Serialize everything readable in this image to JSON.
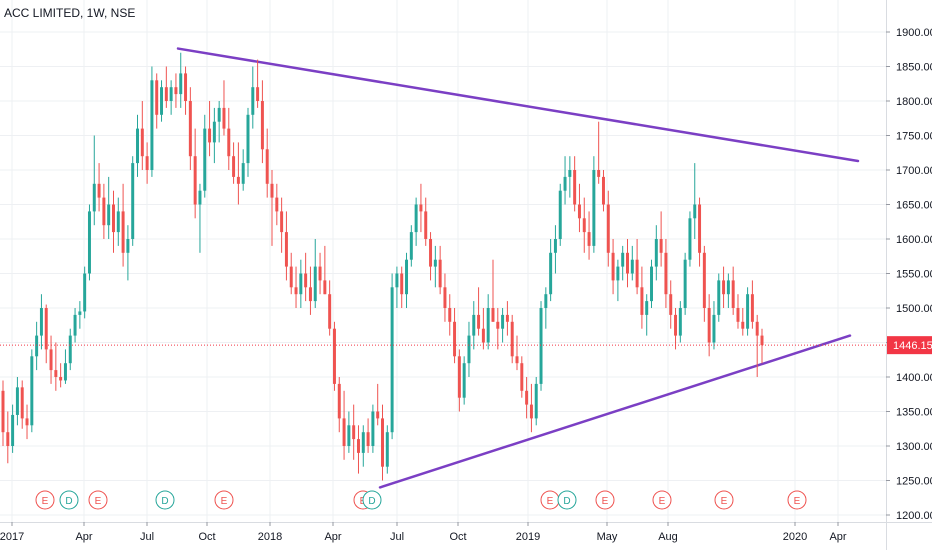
{
  "chart_data": {
    "type": "candlestick",
    "title": "ACC LIMITED, 1W, NSE",
    "y_axis": {
      "ticks": [
        1200,
        1250,
        1300,
        1350,
        1400,
        1450,
        1500,
        1550,
        1600,
        1650,
        1700,
        1750,
        1800,
        1850,
        1900
      ],
      "range": [
        1195,
        1925
      ],
      "position": "right"
    },
    "x_axis": {
      "ticks": [
        "2017",
        "Apr",
        "Jul",
        "Oct",
        "2018",
        "Apr",
        "Jul",
        "Oct",
        "2019",
        "May",
        "Aug",
        "2020",
        "Apr"
      ]
    },
    "last_price": {
      "value": 1446.15,
      "label": "1446.15",
      "color": "#f23645"
    },
    "candles": [
      {
        "o": 1380,
        "h": 1395,
        "l": 1300,
        "c": 1320
      },
      {
        "o": 1320,
        "h": 1350,
        "l": 1275,
        "c": 1300
      },
      {
        "o": 1300,
        "h": 1360,
        "l": 1290,
        "c": 1345
      },
      {
        "o": 1345,
        "h": 1400,
        "l": 1330,
        "c": 1385
      },
      {
        "o": 1385,
        "h": 1395,
        "l": 1325,
        "c": 1340
      },
      {
        "o": 1340,
        "h": 1360,
        "l": 1310,
        "c": 1330
      },
      {
        "o": 1330,
        "h": 1440,
        "l": 1320,
        "c": 1430
      },
      {
        "o": 1430,
        "h": 1480,
        "l": 1410,
        "c": 1460
      },
      {
        "o": 1460,
        "h": 1520,
        "l": 1440,
        "c": 1500
      },
      {
        "o": 1500,
        "h": 1505,
        "l": 1420,
        "c": 1440
      },
      {
        "o": 1440,
        "h": 1460,
        "l": 1390,
        "c": 1410
      },
      {
        "o": 1410,
        "h": 1450,
        "l": 1380,
        "c": 1400
      },
      {
        "o": 1400,
        "h": 1420,
        "l": 1385,
        "c": 1395
      },
      {
        "o": 1395,
        "h": 1440,
        "l": 1390,
        "c": 1420
      },
      {
        "o": 1420,
        "h": 1470,
        "l": 1410,
        "c": 1460
      },
      {
        "o": 1460,
        "h": 1500,
        "l": 1450,
        "c": 1490
      },
      {
        "o": 1490,
        "h": 1510,
        "l": 1470,
        "c": 1495
      },
      {
        "o": 1495,
        "h": 1560,
        "l": 1485,
        "c": 1550
      },
      {
        "o": 1550,
        "h": 1650,
        "l": 1540,
        "c": 1640
      },
      {
        "o": 1640,
        "h": 1750,
        "l": 1620,
        "c": 1680
      },
      {
        "o": 1680,
        "h": 1710,
        "l": 1640,
        "c": 1660
      },
      {
        "o": 1660,
        "h": 1680,
        "l": 1600,
        "c": 1620
      },
      {
        "o": 1620,
        "h": 1690,
        "l": 1600,
        "c": 1650
      },
      {
        "o": 1650,
        "h": 1670,
        "l": 1580,
        "c": 1610
      },
      {
        "o": 1610,
        "h": 1660,
        "l": 1590,
        "c": 1640
      },
      {
        "o": 1640,
        "h": 1680,
        "l": 1560,
        "c": 1580
      },
      {
        "o": 1580,
        "h": 1620,
        "l": 1540,
        "c": 1600
      },
      {
        "o": 1600,
        "h": 1720,
        "l": 1590,
        "c": 1710
      },
      {
        "o": 1710,
        "h": 1780,
        "l": 1690,
        "c": 1760
      },
      {
        "o": 1760,
        "h": 1800,
        "l": 1700,
        "c": 1720
      },
      {
        "o": 1720,
        "h": 1740,
        "l": 1680,
        "c": 1700
      },
      {
        "o": 1700,
        "h": 1850,
        "l": 1690,
        "c": 1830
      },
      {
        "o": 1830,
        "h": 1840,
        "l": 1760,
        "c": 1780
      },
      {
        "o": 1780,
        "h": 1830,
        "l": 1770,
        "c": 1820
      },
      {
        "o": 1820,
        "h": 1850,
        "l": 1790,
        "c": 1800
      },
      {
        "o": 1800,
        "h": 1830,
        "l": 1780,
        "c": 1820
      },
      {
        "o": 1820,
        "h": 1840,
        "l": 1790,
        "c": 1810
      },
      {
        "o": 1810,
        "h": 1870,
        "l": 1790,
        "c": 1840
      },
      {
        "o": 1840,
        "h": 1850,
        "l": 1780,
        "c": 1800
      },
      {
        "o": 1800,
        "h": 1820,
        "l": 1700,
        "c": 1720
      },
      {
        "o": 1720,
        "h": 1760,
        "l": 1630,
        "c": 1650
      },
      {
        "o": 1650,
        "h": 1680,
        "l": 1580,
        "c": 1670
      },
      {
        "o": 1670,
        "h": 1780,
        "l": 1660,
        "c": 1760
      },
      {
        "o": 1760,
        "h": 1800,
        "l": 1720,
        "c": 1740
      },
      {
        "o": 1740,
        "h": 1790,
        "l": 1710,
        "c": 1770
      },
      {
        "o": 1770,
        "h": 1800,
        "l": 1740,
        "c": 1790
      },
      {
        "o": 1790,
        "h": 1830,
        "l": 1750,
        "c": 1760
      },
      {
        "o": 1760,
        "h": 1790,
        "l": 1700,
        "c": 1720
      },
      {
        "o": 1720,
        "h": 1740,
        "l": 1680,
        "c": 1690
      },
      {
        "o": 1690,
        "h": 1740,
        "l": 1650,
        "c": 1680
      },
      {
        "o": 1680,
        "h": 1730,
        "l": 1670,
        "c": 1710
      },
      {
        "o": 1710,
        "h": 1790,
        "l": 1690,
        "c": 1780
      },
      {
        "o": 1780,
        "h": 1850,
        "l": 1760,
        "c": 1820
      },
      {
        "o": 1820,
        "h": 1860,
        "l": 1790,
        "c": 1800
      },
      {
        "o": 1800,
        "h": 1830,
        "l": 1710,
        "c": 1730
      },
      {
        "o": 1730,
        "h": 1760,
        "l": 1660,
        "c": 1680
      },
      {
        "o": 1680,
        "h": 1700,
        "l": 1590,
        "c": 1660
      },
      {
        "o": 1660,
        "h": 1680,
        "l": 1620,
        "c": 1640
      },
      {
        "o": 1640,
        "h": 1660,
        "l": 1580,
        "c": 1610
      },
      {
        "o": 1610,
        "h": 1640,
        "l": 1540,
        "c": 1560
      },
      {
        "o": 1560,
        "h": 1580,
        "l": 1520,
        "c": 1530
      },
      {
        "o": 1530,
        "h": 1560,
        "l": 1500,
        "c": 1520
      },
      {
        "o": 1520,
        "h": 1570,
        "l": 1500,
        "c": 1550
      },
      {
        "o": 1550,
        "h": 1580,
        "l": 1510,
        "c": 1530
      },
      {
        "o": 1530,
        "h": 1560,
        "l": 1490,
        "c": 1510
      },
      {
        "o": 1510,
        "h": 1600,
        "l": 1500,
        "c": 1560
      },
      {
        "o": 1560,
        "h": 1580,
        "l": 1520,
        "c": 1540
      },
      {
        "o": 1540,
        "h": 1590,
        "l": 1520,
        "c": 1520
      },
      {
        "o": 1520,
        "h": 1540,
        "l": 1460,
        "c": 1470
      },
      {
        "o": 1470,
        "h": 1480,
        "l": 1380,
        "c": 1390
      },
      {
        "o": 1390,
        "h": 1400,
        "l": 1320,
        "c": 1340
      },
      {
        "o": 1340,
        "h": 1380,
        "l": 1280,
        "c": 1300
      },
      {
        "o": 1300,
        "h": 1350,
        "l": 1290,
        "c": 1330
      },
      {
        "o": 1330,
        "h": 1360,
        "l": 1280,
        "c": 1310
      },
      {
        "o": 1310,
        "h": 1330,
        "l": 1260,
        "c": 1290
      },
      {
        "o": 1290,
        "h": 1330,
        "l": 1270,
        "c": 1320
      },
      {
        "o": 1320,
        "h": 1340,
        "l": 1290,
        "c": 1300
      },
      {
        "o": 1300,
        "h": 1360,
        "l": 1290,
        "c": 1350
      },
      {
        "o": 1350,
        "h": 1390,
        "l": 1330,
        "c": 1340
      },
      {
        "o": 1340,
        "h": 1360,
        "l": 1250,
        "c": 1270
      },
      {
        "o": 1270,
        "h": 1330,
        "l": 1260,
        "c": 1320
      },
      {
        "o": 1320,
        "h": 1550,
        "l": 1310,
        "c": 1530
      },
      {
        "o": 1530,
        "h": 1560,
        "l": 1500,
        "c": 1550
      },
      {
        "o": 1550,
        "h": 1560,
        "l": 1500,
        "c": 1520
      },
      {
        "o": 1520,
        "h": 1580,
        "l": 1500,
        "c": 1570
      },
      {
        "o": 1570,
        "h": 1620,
        "l": 1560,
        "c": 1610
      },
      {
        "o": 1610,
        "h": 1660,
        "l": 1590,
        "c": 1650
      },
      {
        "o": 1650,
        "h": 1680,
        "l": 1610,
        "c": 1640
      },
      {
        "o": 1640,
        "h": 1660,
        "l": 1590,
        "c": 1600
      },
      {
        "o": 1600,
        "h": 1610,
        "l": 1540,
        "c": 1560
      },
      {
        "o": 1560,
        "h": 1590,
        "l": 1530,
        "c": 1570
      },
      {
        "o": 1570,
        "h": 1590,
        "l": 1520,
        "c": 1530
      },
      {
        "o": 1530,
        "h": 1550,
        "l": 1480,
        "c": 1500
      },
      {
        "o": 1500,
        "h": 1520,
        "l": 1460,
        "c": 1480
      },
      {
        "o": 1480,
        "h": 1500,
        "l": 1420,
        "c": 1430
      },
      {
        "o": 1430,
        "h": 1440,
        "l": 1350,
        "c": 1370
      },
      {
        "o": 1370,
        "h": 1430,
        "l": 1360,
        "c": 1420
      },
      {
        "o": 1420,
        "h": 1480,
        "l": 1400,
        "c": 1460
      },
      {
        "o": 1460,
        "h": 1510,
        "l": 1440,
        "c": 1490
      },
      {
        "o": 1490,
        "h": 1530,
        "l": 1460,
        "c": 1470
      },
      {
        "o": 1470,
        "h": 1500,
        "l": 1440,
        "c": 1450
      },
      {
        "o": 1450,
        "h": 1520,
        "l": 1440,
        "c": 1500
      },
      {
        "o": 1500,
        "h": 1570,
        "l": 1480,
        "c": 1480
      },
      {
        "o": 1480,
        "h": 1500,
        "l": 1440,
        "c": 1470
      },
      {
        "o": 1470,
        "h": 1500,
        "l": 1450,
        "c": 1490
      },
      {
        "o": 1490,
        "h": 1510,
        "l": 1460,
        "c": 1480
      },
      {
        "o": 1480,
        "h": 1490,
        "l": 1420,
        "c": 1430
      },
      {
        "o": 1430,
        "h": 1460,
        "l": 1410,
        "c": 1420
      },
      {
        "o": 1420,
        "h": 1430,
        "l": 1370,
        "c": 1380
      },
      {
        "o": 1380,
        "h": 1400,
        "l": 1340,
        "c": 1360
      },
      {
        "o": 1360,
        "h": 1390,
        "l": 1320,
        "c": 1340
      },
      {
        "o": 1340,
        "h": 1400,
        "l": 1330,
        "c": 1390
      },
      {
        "o": 1390,
        "h": 1510,
        "l": 1380,
        "c": 1500
      },
      {
        "o": 1500,
        "h": 1530,
        "l": 1470,
        "c": 1520
      },
      {
        "o": 1520,
        "h": 1600,
        "l": 1510,
        "c": 1580
      },
      {
        "o": 1580,
        "h": 1620,
        "l": 1550,
        "c": 1600
      },
      {
        "o": 1600,
        "h": 1680,
        "l": 1590,
        "c": 1670
      },
      {
        "o": 1670,
        "h": 1720,
        "l": 1650,
        "c": 1690
      },
      {
        "o": 1690,
        "h": 1720,
        "l": 1660,
        "c": 1700
      },
      {
        "o": 1700,
        "h": 1720,
        "l": 1640,
        "c": 1650
      },
      {
        "o": 1650,
        "h": 1680,
        "l": 1610,
        "c": 1630
      },
      {
        "o": 1630,
        "h": 1660,
        "l": 1580,
        "c": 1610
      },
      {
        "o": 1610,
        "h": 1640,
        "l": 1570,
        "c": 1590
      },
      {
        "o": 1590,
        "h": 1720,
        "l": 1580,
        "c": 1700
      },
      {
        "o": 1700,
        "h": 1770,
        "l": 1680,
        "c": 1690
      },
      {
        "o": 1690,
        "h": 1700,
        "l": 1640,
        "c": 1650
      },
      {
        "o": 1650,
        "h": 1670,
        "l": 1560,
        "c": 1580
      },
      {
        "o": 1580,
        "h": 1600,
        "l": 1520,
        "c": 1540
      },
      {
        "o": 1540,
        "h": 1570,
        "l": 1510,
        "c": 1560
      },
      {
        "o": 1560,
        "h": 1590,
        "l": 1540,
        "c": 1580
      },
      {
        "o": 1580,
        "h": 1600,
        "l": 1530,
        "c": 1550
      },
      {
        "o": 1550,
        "h": 1590,
        "l": 1540,
        "c": 1570
      },
      {
        "o": 1570,
        "h": 1600,
        "l": 1520,
        "c": 1530
      },
      {
        "o": 1530,
        "h": 1560,
        "l": 1470,
        "c": 1490
      },
      {
        "o": 1490,
        "h": 1520,
        "l": 1460,
        "c": 1510
      },
      {
        "o": 1510,
        "h": 1570,
        "l": 1500,
        "c": 1560
      },
      {
        "o": 1560,
        "h": 1620,
        "l": 1540,
        "c": 1600
      },
      {
        "o": 1600,
        "h": 1640,
        "l": 1560,
        "c": 1580
      },
      {
        "o": 1580,
        "h": 1600,
        "l": 1500,
        "c": 1520
      },
      {
        "o": 1520,
        "h": 1540,
        "l": 1470,
        "c": 1490
      },
      {
        "o": 1490,
        "h": 1500,
        "l": 1440,
        "c": 1460
      },
      {
        "o": 1460,
        "h": 1510,
        "l": 1450,
        "c": 1500
      },
      {
        "o": 1500,
        "h": 1580,
        "l": 1490,
        "c": 1570
      },
      {
        "o": 1570,
        "h": 1640,
        "l": 1560,
        "c": 1630
      },
      {
        "o": 1630,
        "h": 1710,
        "l": 1600,
        "c": 1650
      },
      {
        "o": 1650,
        "h": 1660,
        "l": 1560,
        "c": 1580
      },
      {
        "o": 1580,
        "h": 1590,
        "l": 1480,
        "c": 1500
      },
      {
        "o": 1500,
        "h": 1520,
        "l": 1430,
        "c": 1450
      },
      {
        "o": 1450,
        "h": 1510,
        "l": 1440,
        "c": 1490
      },
      {
        "o": 1490,
        "h": 1550,
        "l": 1480,
        "c": 1540
      },
      {
        "o": 1540,
        "h": 1560,
        "l": 1500,
        "c": 1520
      },
      {
        "o": 1520,
        "h": 1550,
        "l": 1500,
        "c": 1540
      },
      {
        "o": 1540,
        "h": 1560,
        "l": 1490,
        "c": 1500
      },
      {
        "o": 1500,
        "h": 1520,
        "l": 1470,
        "c": 1480
      },
      {
        "o": 1480,
        "h": 1500,
        "l": 1460,
        "c": 1470
      },
      {
        "o": 1470,
        "h": 1530,
        "l": 1460,
        "c": 1520
      },
      {
        "o": 1520,
        "h": 1540,
        "l": 1470,
        "c": 1480
      },
      {
        "o": 1480,
        "h": 1490,
        "l": 1400,
        "c": 1460
      },
      {
        "o": 1460,
        "h": 1470,
        "l": 1420,
        "c": 1446.15
      }
    ],
    "events": [
      {
        "letter": "E",
        "kind": "earnings",
        "label": ""
      },
      {
        "letter": "D",
        "kind": "dividend",
        "label": ""
      },
      {
        "letter": "E",
        "kind": "earnings",
        "label": ""
      },
      {
        "letter": "D",
        "kind": "dividend",
        "label": ""
      },
      {
        "letter": "E",
        "kind": "earnings",
        "label": ""
      },
      {
        "letter": "E",
        "kind": "earnings",
        "label": ""
      },
      {
        "letter": "D",
        "kind": "dividend",
        "label": ""
      },
      {
        "letter": "E",
        "kind": "earnings",
        "label": ""
      },
      {
        "letter": "D",
        "kind": "dividend",
        "label": ""
      },
      {
        "letter": "E",
        "kind": "earnings",
        "label": ""
      },
      {
        "letter": "E",
        "kind": "earnings",
        "label": ""
      },
      {
        "letter": "E",
        "kind": "earnings",
        "label": ""
      },
      {
        "letter": "E",
        "kind": "earnings",
        "label": ""
      }
    ],
    "trendlines": [
      {
        "name": "upper",
        "from_price": 1876,
        "to_price": 1713,
        "color": "#7b3fc4"
      },
      {
        "name": "lower",
        "from_price": 1240,
        "to_price": 1460,
        "color": "#7b3fc4"
      }
    ],
    "colors": {
      "up": "#26a69a",
      "down": "#ef5350",
      "grid": "#eef0f3",
      "axis_text": "#131722",
      "earnings": "#ef5350",
      "dividend": "#26a69a"
    }
  }
}
